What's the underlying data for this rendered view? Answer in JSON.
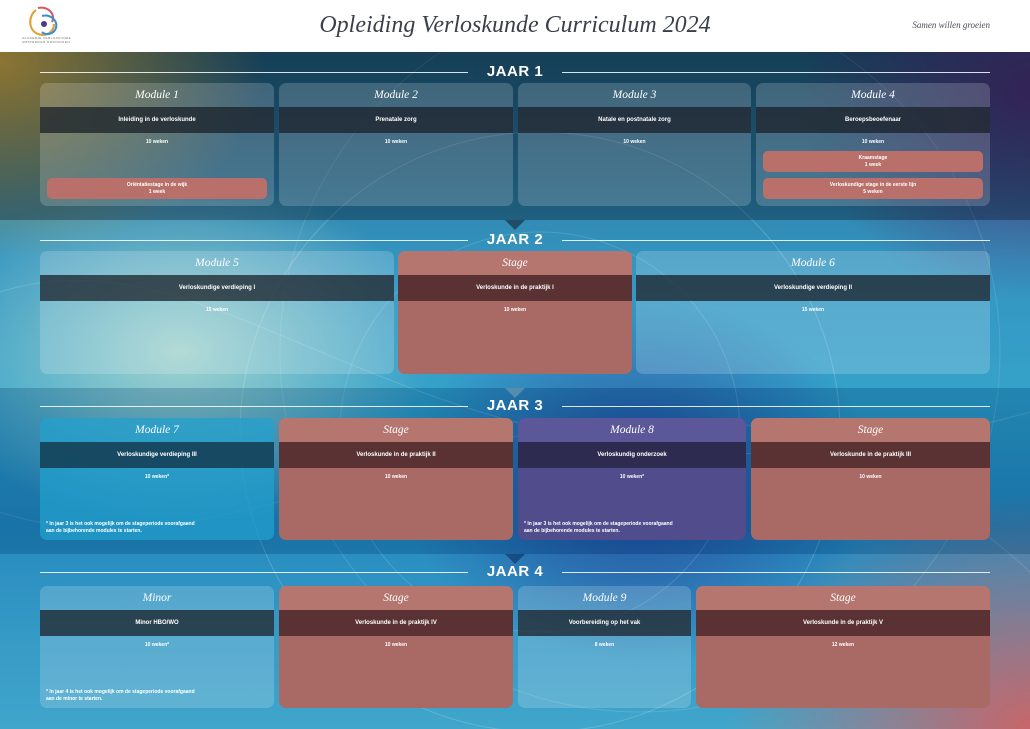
{
  "header": {
    "logo_text": "academie verloskunde amsterdam groningen",
    "title": "Opleiding Verloskunde Curriculum 2024",
    "tagline": "Samen willen groeien"
  },
  "years": [
    {
      "title": "JAAR 1",
      "cards": [
        {
          "title": "Module 1",
          "subtitle": "Inleiding in de verloskunde",
          "duration": "10 weken",
          "extras": [
            "Oriëntatiestage in de wijk\n1 week"
          ]
        },
        {
          "title": "Module 2",
          "subtitle": "Prenatale zorg",
          "duration": "10 weken"
        },
        {
          "title": "Module 3",
          "subtitle": "Natale en postnatale zorg",
          "duration": "10 weken"
        },
        {
          "title": "Module 4",
          "subtitle": "Beroepsbeoefenaar",
          "duration": "10 weken",
          "extras": [
            "Kraamstage\n1 week",
            "Verloskundige stage in de eerste lijn\n5 weken"
          ]
        }
      ]
    },
    {
      "title": "JAAR 2",
      "cards": [
        {
          "title": "Module 5",
          "subtitle": "Verloskundige verdieping I",
          "duration": "15 weken"
        },
        {
          "title": "Stage",
          "subtitle": "Verloskunde in de praktijk I",
          "duration": "10 weken"
        },
        {
          "title": "Module 6",
          "subtitle": "Verloskundige verdieping II",
          "duration": "15 weken"
        }
      ]
    },
    {
      "title": "JAAR 3",
      "cards": [
        {
          "title": "Module 7",
          "subtitle": "Verloskundige verdieping III",
          "duration": "10 weken*",
          "note": "* In jaar 3 is het ook mogelijk om de stageperiode voorafgaand\naan de bijbehorende modules te starten."
        },
        {
          "title": "Stage",
          "subtitle": "Verloskunde in de praktijk II",
          "duration": "10 weken"
        },
        {
          "title": "Module 8",
          "subtitle": "Verloskundig onderzoek",
          "duration": "10 weken*",
          "note": "* In jaar 3 is het ook mogelijk om de stageperiode voorafgaand\naan de bijbehorende modules te starten."
        },
        {
          "title": "Stage",
          "subtitle": "Verloskunde in de praktijk III",
          "duration": "10 weken"
        }
      ]
    },
    {
      "title": "JAAR 4",
      "cards": [
        {
          "title": "Minor",
          "subtitle": "Minor HBO/WO",
          "duration": "10 weken*",
          "note": "* In jaar 4 is het ook mogelijk om de stageperiode voorafgaand\naan de minor te starten."
        },
        {
          "title": "Stage",
          "subtitle": "Verloskunde in de praktijk IV",
          "duration": "10 weken"
        },
        {
          "title": "Module 9",
          "subtitle": "Voorbereiding op het vak",
          "duration": "8 weken"
        },
        {
          "title": "Stage",
          "subtitle": "Verloskunde in de praktijk V",
          "duration": "12 weken"
        }
      ]
    }
  ]
}
